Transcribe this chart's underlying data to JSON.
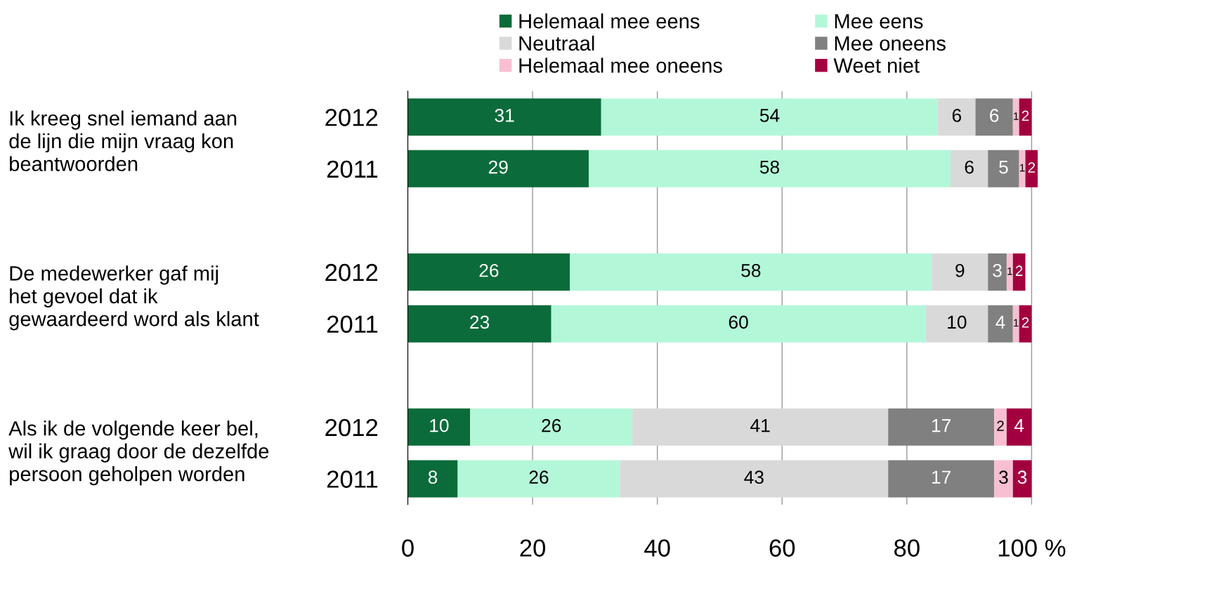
{
  "chart_data": {
    "type": "bar",
    "orientation": "horizontal",
    "stacked": true,
    "categories": [
      "2012",
      "2011",
      null,
      "2012",
      "2011",
      null,
      "2012",
      "2011"
    ],
    "series": [
      {
        "name": "Helemaal mee eens",
        "color": "#0b6b3a",
        "values": [
          31,
          29,
          null,
          26,
          23,
          null,
          10,
          8
        ]
      },
      {
        "name": "Mee eens",
        "color": "#b3f7d9",
        "values": [
          54,
          58,
          null,
          58,
          60,
          null,
          26,
          26
        ]
      },
      {
        "name": "Neutraal",
        "color": "#d9d9d9",
        "values": [
          6,
          6,
          null,
          9,
          10,
          null,
          41,
          43
        ]
      },
      {
        "name": "Mee oneens",
        "color": "#808080",
        "values": [
          6,
          5,
          null,
          3,
          4,
          null,
          17,
          17
        ]
      },
      {
        "name": "Helemaal mee oneens",
        "color": "#f8bfd2",
        "values": [
          1,
          1,
          null,
          1,
          1,
          null,
          2,
          3
        ]
      },
      {
        "name": "Weet niet",
        "color": "#a3003f",
        "values": [
          2,
          2,
          null,
          2,
          2,
          null,
          4,
          3
        ]
      }
    ],
    "annotations": [
      "Ik kreeg snel iemand aan\nde lijn die mijn vraag kon\nbeantwoorden",
      "De medewerker gaf mij\nhet gevoel dat ik\ngewaardeerd word als klant",
      "Als ik de volgende keer bel,\nwil ik graag door de dezelfde\npersoon geholpen worden"
    ],
    "xlim": [
      0,
      101
    ],
    "xticks": [
      0,
      20,
      40,
      60,
      80,
      {
        "value": 100,
        "label": "100 %"
      }
    ],
    "grid": "x",
    "legend": "top",
    "data_labels": true
  }
}
